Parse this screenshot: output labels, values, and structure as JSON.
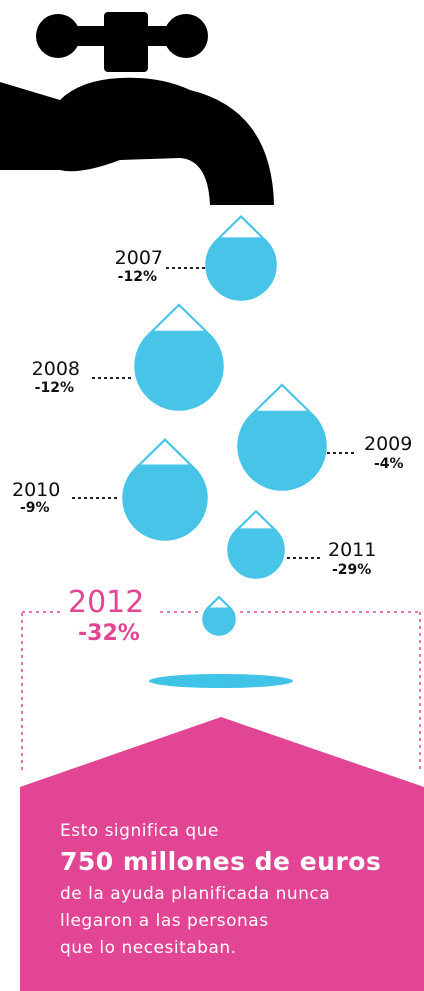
{
  "drops": [
    {
      "year": "2007",
      "change": "-12%"
    },
    {
      "year": "2008",
      "change": "-12%"
    },
    {
      "year": "2009",
      "change": "-4%"
    },
    {
      "year": "2010",
      "change": "-9%"
    },
    {
      "year": "2011",
      "change": "-29%"
    },
    {
      "year": "2012",
      "change": "-32%"
    }
  ],
  "message": {
    "intro": "Esto significa que",
    "highlight": "750 millones de euros",
    "lines": [
      "de la ayuda planificada nunca",
      "llegaron a las personas",
      "que lo necesitaban."
    ]
  }
}
